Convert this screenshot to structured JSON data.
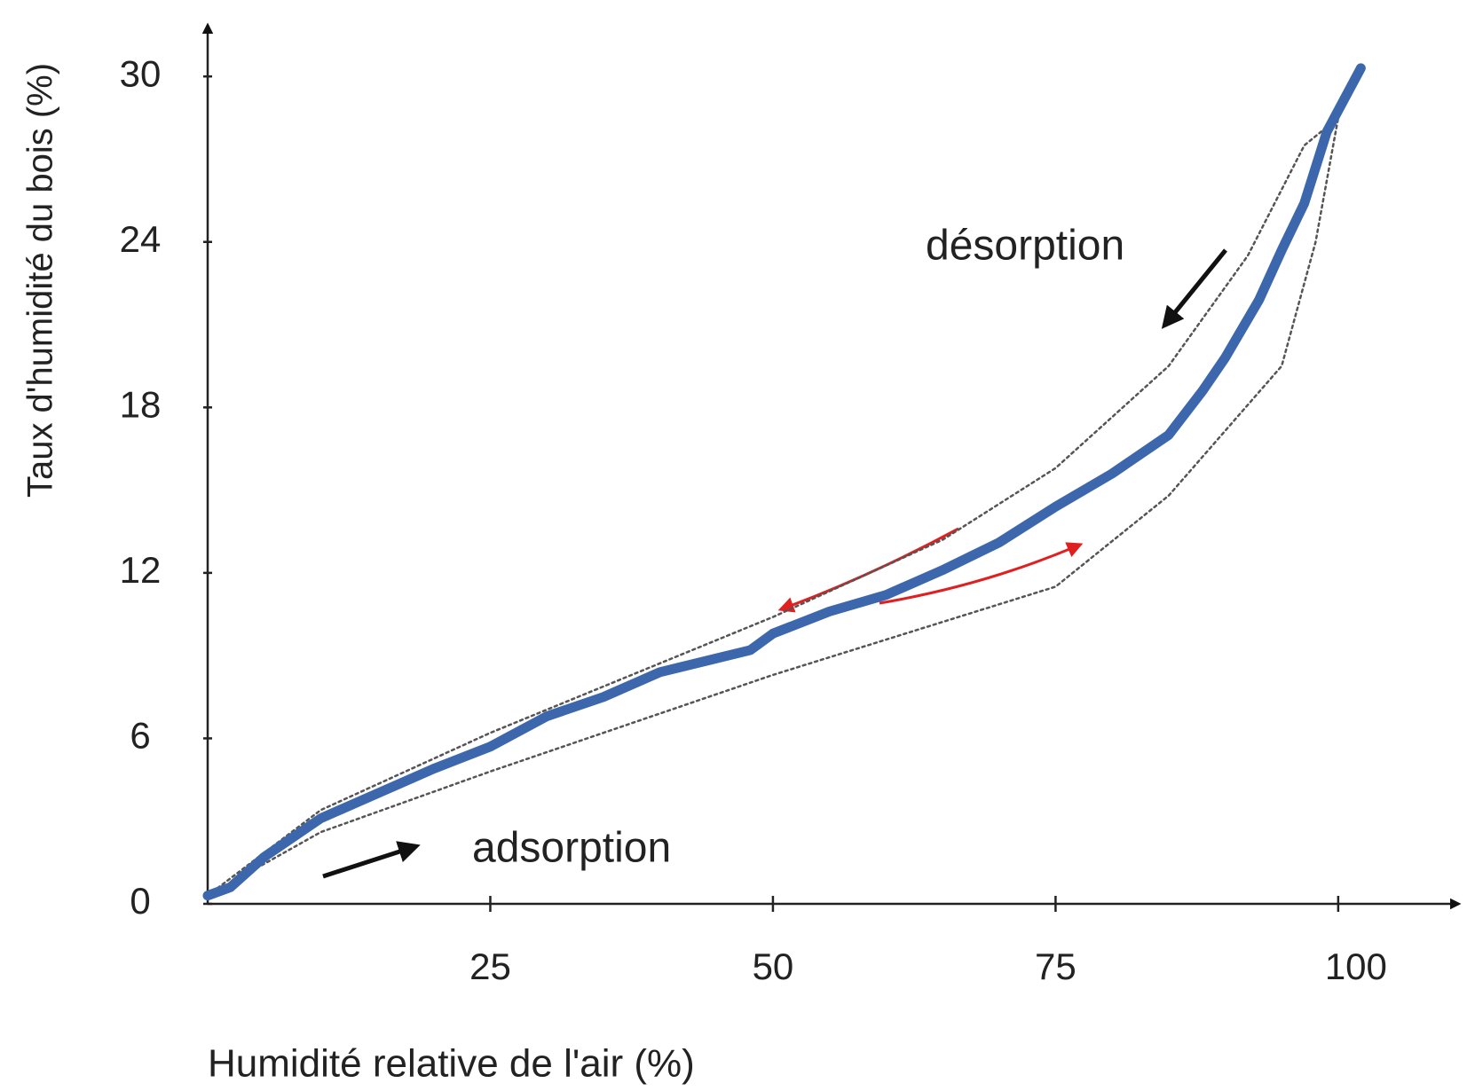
{
  "chart_data": {
    "type": "line",
    "xlabel": "Humidité relative de l'air (%)",
    "ylabel": "Taux d'humidité du bois (%)",
    "annotations": [
      "désorption",
      "adsorption"
    ],
    "xlim": [
      0,
      111
    ],
    "ylim": [
      0,
      32
    ],
    "xticks": [
      25,
      50,
      75,
      100
    ],
    "yticks": [
      0,
      6,
      12,
      18,
      24,
      30
    ],
    "series": [
      {
        "color": "#555555",
        "style": "dotted",
        "x": [
          0,
          10,
          25,
          50,
          65,
          75,
          85,
          92,
          97,
          100
        ],
        "values": [
          0.3,
          3.4,
          6.2,
          10.4,
          13.2,
          15.8,
          19.5,
          23.5,
          27.5,
          28.5
        ]
      },
      {
        "color": "#555555",
        "style": "dotted",
        "x": [
          0,
          10,
          25,
          50,
          75,
          85,
          95,
          98,
          100
        ],
        "values": [
          0.3,
          2.6,
          4.8,
          8.3,
          11.5,
          14.8,
          19.5,
          24,
          28.5
        ]
      },
      {
        "color": "#3d67ad",
        "style": "solid",
        "x": [
          0,
          2,
          5,
          10,
          15,
          20,
          25,
          30,
          35,
          40,
          45,
          48,
          50,
          55,
          60,
          65,
          70,
          75,
          80,
          85,
          88,
          90,
          93,
          95,
          97,
          99,
          102
        ],
        "values": [
          0.3,
          0.6,
          1.7,
          3.1,
          4.0,
          4.9,
          5.7,
          6.8,
          7.5,
          8.4,
          8.9,
          9.2,
          9.8,
          10.6,
          11.2,
          12.1,
          13.1,
          14.4,
          15.6,
          17.0,
          18.6,
          19.8,
          21.9,
          23.7,
          25.4,
          28.0,
          30.3
        ]
      }
    ]
  }
}
